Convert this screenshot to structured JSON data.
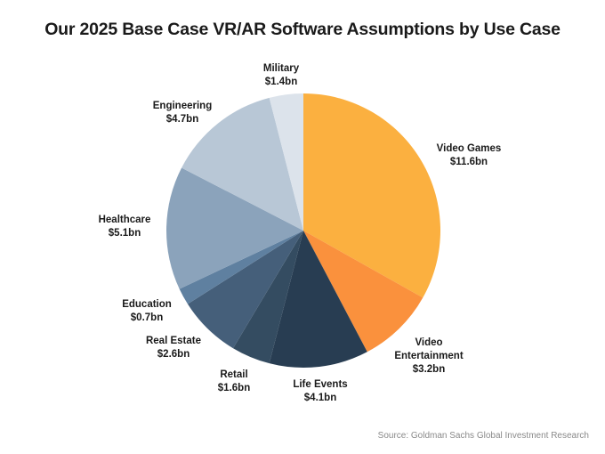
{
  "chart_data": {
    "type": "pie",
    "title": "Our 2025 Base Case VR/AR Software Assumptions by Use Case",
    "unit": "$bn",
    "start": "top, clockwise",
    "slices": [
      {
        "name": "Video Games",
        "value": 11.6,
        "label_lines": [
          "Video Games",
          "$11.6bn"
        ],
        "color": "#FBB040"
      },
      {
        "name": "Video Entertainment",
        "value": 3.2,
        "label_lines": [
          "Video",
          "Entertainment",
          "$3.2bn"
        ],
        "color": "#FA913D"
      },
      {
        "name": "Life Events",
        "value": 4.1,
        "label_lines": [
          "Life Events",
          "$4.1bn"
        ],
        "color": "#283D52"
      },
      {
        "name": "Retail",
        "value": 1.6,
        "label_lines": [
          "Retail",
          "$1.6bn"
        ],
        "color": "#344C61"
      },
      {
        "name": "Real Estate",
        "value": 2.6,
        "label_lines": [
          "Real Estate",
          "$2.6bn"
        ],
        "color": "#455F7A"
      },
      {
        "name": "Education",
        "value": 0.7,
        "label_lines": [
          "Education",
          "$0.7bn"
        ],
        "color": "#5F80A0"
      },
      {
        "name": "Healthcare",
        "value": 5.1,
        "label_lines": [
          "Healthcare",
          "$5.1bn"
        ],
        "color": "#8BA3BB"
      },
      {
        "name": "Engineering",
        "value": 4.7,
        "label_lines": [
          "Engineering",
          "$4.7bn"
        ],
        "color": "#B8C7D6"
      },
      {
        "name": "Military",
        "value": 1.4,
        "label_lines": [
          "Military",
          "$1.4bn"
        ],
        "color": "#DCE3EB"
      }
    ],
    "legend": "none (direct labels)"
  },
  "source": "Source: Goldman Sachs Global Investment Research"
}
